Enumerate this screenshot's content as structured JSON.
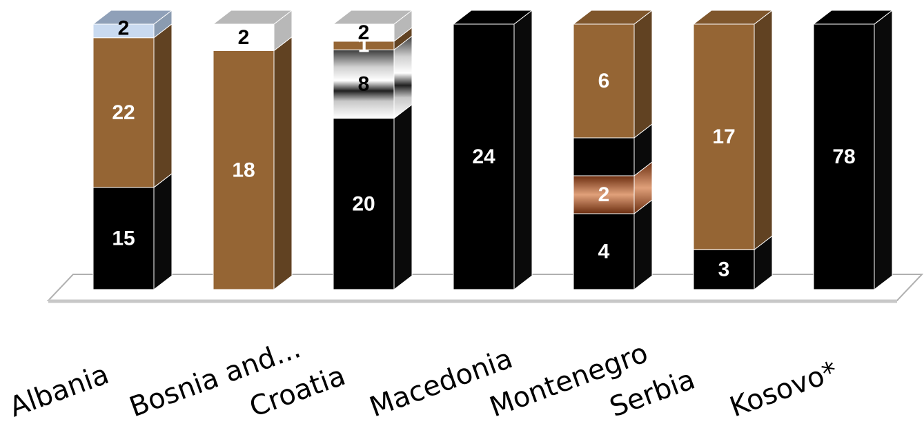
{
  "chart_data": {
    "type": "bar",
    "stacked": true,
    "three_d": true,
    "categories": [
      "Albania",
      "Bosnia and...",
      "Croatia",
      "Macedonia",
      "Montenegro",
      "Serbia",
      "Kosovo*"
    ],
    "bars": [
      {
        "category": "Albania",
        "segments": [
          {
            "value": 15,
            "label": "15",
            "color": "#000000",
            "label_color": "#ffffff"
          },
          {
            "value": 22,
            "label": "22",
            "color": "#956534",
            "label_color": "#ffffff"
          },
          {
            "value": 2,
            "label": "2",
            "color": "#c9daf0",
            "label_color": "#000000"
          }
        ]
      },
      {
        "category": "Bosnia and...",
        "segments": [
          {
            "value": 18,
            "label": "18",
            "color": "#956534",
            "label_color": "#ffffff"
          },
          {
            "value": 2,
            "label": "2",
            "color": "#ffffff",
            "label_color": "#000000"
          }
        ]
      },
      {
        "category": "Croatia",
        "segments": [
          {
            "value": 20,
            "label": "20",
            "color": "#000000",
            "label_color": "#ffffff"
          },
          {
            "value": 8,
            "label": "8",
            "color": "#9a9a9a",
            "label_color": "#000000"
          },
          {
            "value": 1,
            "label": "1",
            "color": "#956534",
            "label_color": "#ffffff"
          },
          {
            "value": 2,
            "label": "2",
            "color": "#ffffff",
            "label_color": "#000000"
          }
        ]
      },
      {
        "category": "Macedonia",
        "segments": [
          {
            "value": 24,
            "label": "24",
            "color": "#000000",
            "label_color": "#ffffff"
          }
        ]
      },
      {
        "category": "Montenegro",
        "segments": [
          {
            "value": 4,
            "label": "4",
            "color": "#000000",
            "label_color": "#ffffff"
          },
          {
            "value": 2,
            "label": "2",
            "color": "#8a4a22",
            "label_color": "#ffffff"
          },
          {
            "value": 2,
            "label": "",
            "color": "#000000",
            "label_color": "#ffffff"
          },
          {
            "value": 6,
            "label": "6",
            "color": "#956534",
            "label_color": "#ffffff"
          }
        ]
      },
      {
        "category": "Serbia",
        "segments": [
          {
            "value": 3,
            "label": "3",
            "color": "#000000",
            "label_color": "#ffffff"
          },
          {
            "value": 17,
            "label": "17",
            "color": "#956534",
            "label_color": "#ffffff"
          }
        ]
      },
      {
        "category": "Kosovo*",
        "segments": [
          {
            "value": 78,
            "label": "78",
            "color": "#000000",
            "label_color": "#ffffff"
          }
        ]
      }
    ],
    "normalized_to_100_percent": true,
    "title": "",
    "xlabel": "",
    "ylabel": "",
    "legend": "none",
    "grid": false
  }
}
